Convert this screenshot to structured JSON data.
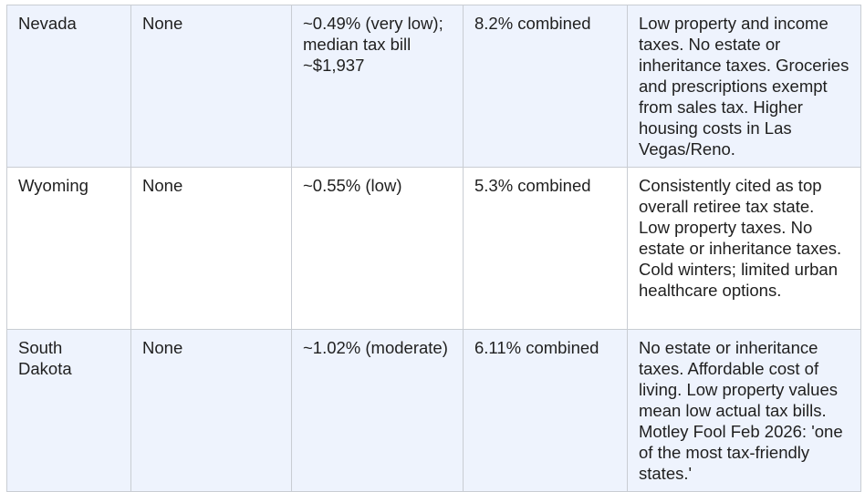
{
  "rows": [
    {
      "state": "Nevada",
      "income_tax": "None",
      "property_tax": "~0.49% (very low); median tax bill ~$1,937",
      "sales_tax": "8.2% combined",
      "notes": "Low property and income taxes. No estate or inheritance taxes. Groceries and prescriptions exempt from sales tax. Higher housing costs in Las Vegas/Reno."
    },
    {
      "state": "Wyoming",
      "income_tax": "None",
      "property_tax": "~0.55% (low)",
      "sales_tax": "5.3% combined",
      "notes": "Consistently cited as top overall retiree tax state. Low property taxes. No estate or inheritance taxes. Cold winters; limited urban healthcare options."
    },
    {
      "state": "South Dakota",
      "income_tax": "None",
      "property_tax": "~1.02% (moderate)",
      "sales_tax": "6.11% combined",
      "notes": "No estate or inheritance taxes. Affordable cost of living. Low property values mean low actual tax bills. Motley Fool Feb 2026: 'one of the most tax-friendly states.'"
    }
  ]
}
